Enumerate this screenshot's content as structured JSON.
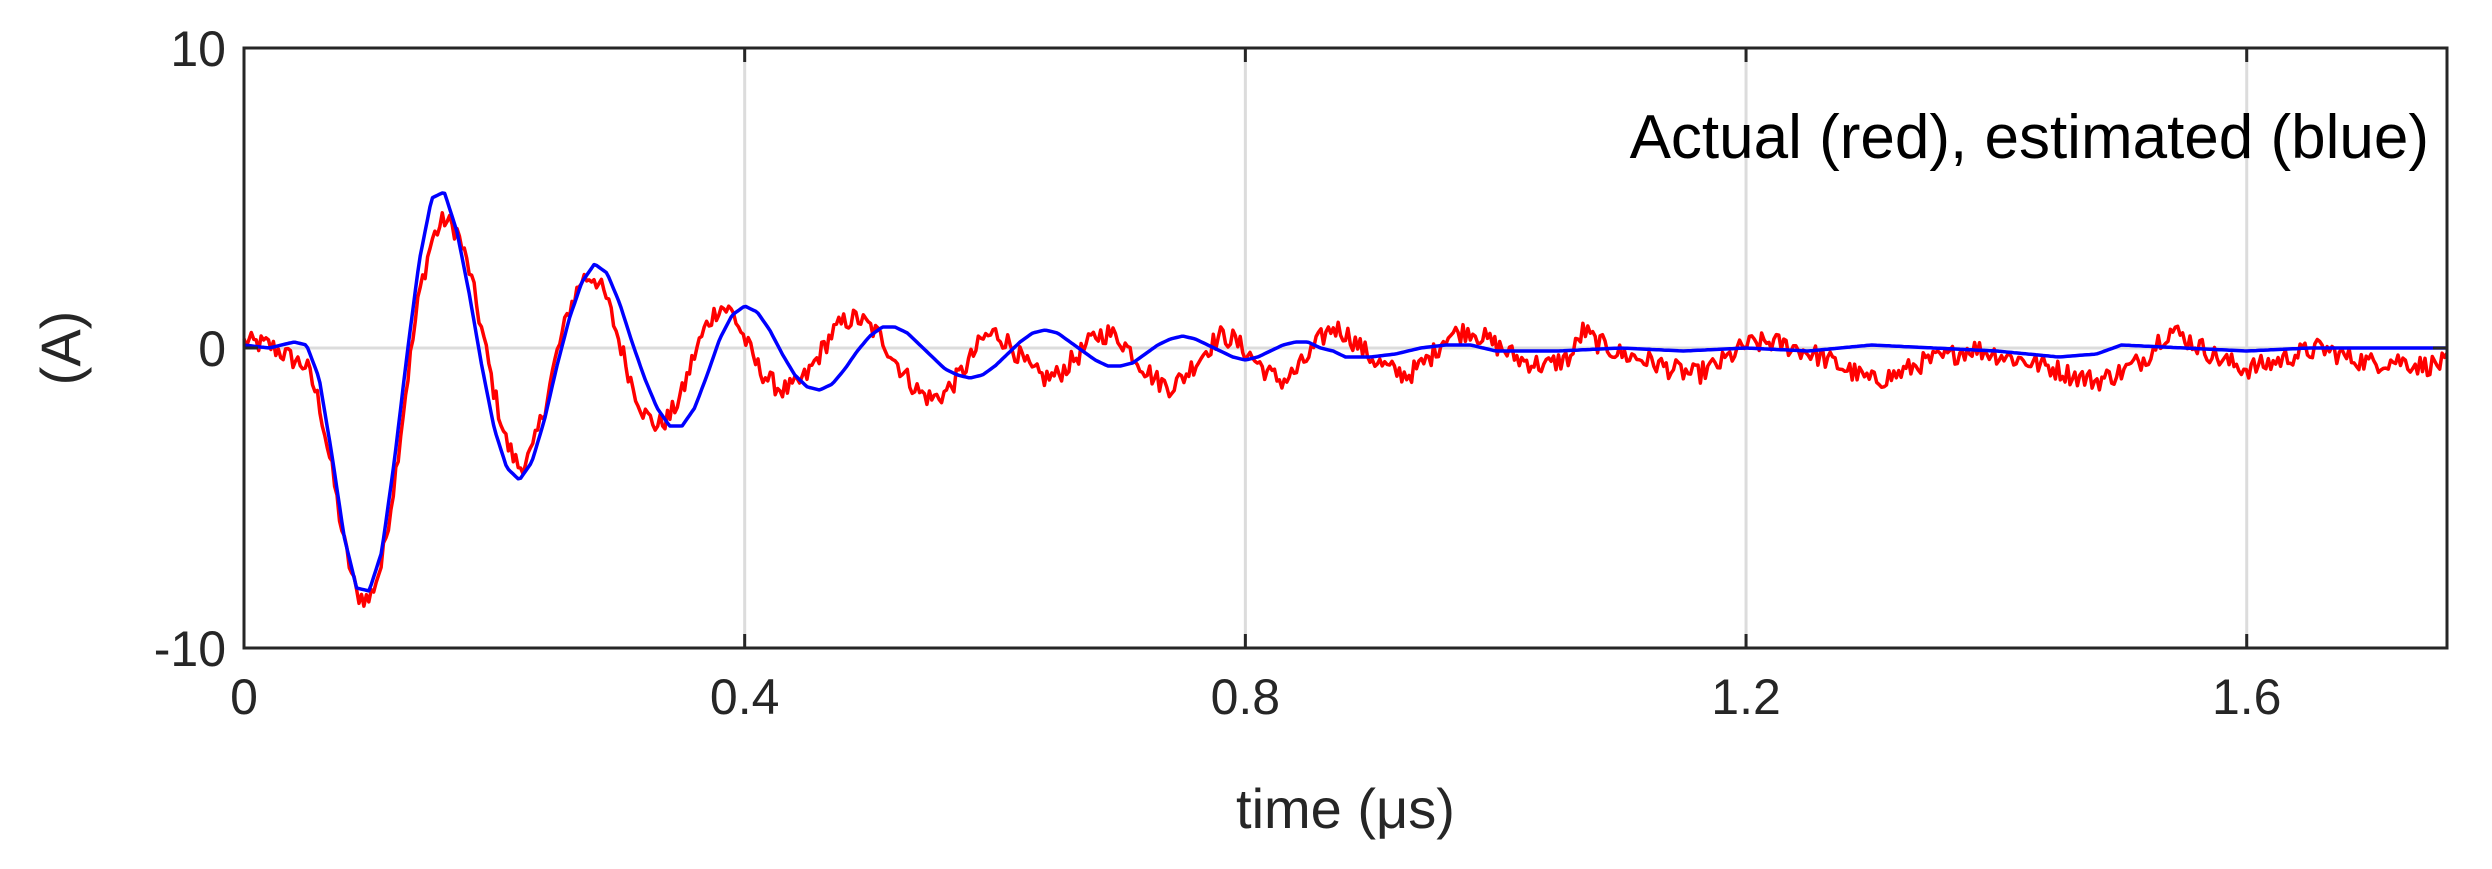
{
  "chart_data": {
    "type": "line",
    "xlabel": "time (μs)",
    "ylabel": "(A)",
    "annotation": "Actual (red), estimated (blue)",
    "xlim": [
      0,
      1.76
    ],
    "ylim": [
      -10,
      10
    ],
    "x_ticks": [
      "0",
      "0.4",
      "0.8",
      "1.2",
      "1.6"
    ],
    "x_tick_values": [
      0,
      0.4,
      0.8,
      1.2,
      1.6
    ],
    "y_ticks": [
      "10",
      "0",
      "-10"
    ],
    "y_tick_values": [
      10,
      0,
      -10
    ],
    "grid": true,
    "series": [
      {
        "color": "#ff0000",
        "x": [
          0,
          0.02,
          0.04,
          0.05,
          0.06,
          0.07,
          0.08,
          0.09,
          0.1,
          0.11,
          0.12,
          0.13,
          0.14,
          0.15,
          0.16,
          0.17,
          0.18,
          0.19,
          0.2,
          0.21,
          0.22,
          0.23,
          0.24,
          0.25,
          0.26,
          0.27,
          0.28,
          0.29,
          0.3,
          0.31,
          0.32,
          0.33,
          0.34,
          0.35,
          0.36,
          0.37,
          0.38,
          0.39,
          0.4,
          0.41,
          0.42,
          0.43,
          0.44,
          0.45,
          0.46,
          0.47,
          0.48,
          0.49,
          0.5,
          0.51,
          0.52,
          0.53,
          0.54,
          0.55,
          0.56,
          0.57,
          0.58,
          0.59,
          0.6,
          0.61,
          0.62,
          0.63,
          0.64,
          0.65,
          0.66,
          0.67,
          0.68,
          0.69,
          0.7,
          0.71,
          0.72,
          0.73,
          0.74,
          0.75,
          0.76,
          0.77,
          0.78,
          0.79,
          0.8,
          0.81,
          0.82,
          0.83,
          0.84,
          0.85,
          0.86,
          0.87,
          0.88,
          0.89,
          0.9,
          0.91,
          0.92,
          0.93,
          0.94,
          0.95,
          0.96,
          0.98,
          1.0,
          1.02,
          1.04,
          1.06,
          1.07,
          1.08,
          1.1,
          1.12,
          1.14,
          1.16,
          1.18,
          1.2,
          1.22,
          1.24,
          1.26,
          1.28,
          1.3,
          1.32,
          1.34,
          1.36,
          1.38,
          1.4,
          1.42,
          1.44,
          1.46,
          1.48,
          1.5,
          1.52,
          1.53,
          1.54,
          1.56,
          1.58,
          1.6,
          1.62,
          1.64,
          1.66,
          1.68,
          1.7,
          1.72,
          1.74,
          1.76
        ],
        "y": [
          0.2,
          0.1,
          -0.4,
          -0.6,
          -1.8,
          -4.0,
          -6.5,
          -8.2,
          -8.4,
          -7.2,
          -4.5,
          -1.2,
          1.8,
          3.6,
          4.3,
          3.9,
          2.6,
          0.6,
          -1.5,
          -3.2,
          -4.0,
          -3.5,
          -2.0,
          -0.2,
          1.3,
          2.3,
          2.4,
          1.6,
          0.2,
          -1.2,
          -2.2,
          -2.6,
          -2.3,
          -1.5,
          -0.2,
          0.8,
          1.4,
          1.2,
          0.3,
          -0.6,
          -1.1,
          -1.4,
          -1.3,
          -0.9,
          -0.2,
          0.5,
          0.9,
          1.0,
          0.7,
          0.3,
          -0.4,
          -1.0,
          -1.5,
          -1.7,
          -1.5,
          -1.0,
          -0.4,
          0.3,
          0.5,
          0.2,
          -0.3,
          -0.8,
          -1.0,
          -0.9,
          -0.5,
          -0.1,
          0.4,
          0.5,
          0.3,
          -0.2,
          -0.7,
          -1.1,
          -1.3,
          -1.0,
          -0.5,
          0.0,
          0.4,
          0.3,
          -0.1,
          -0.5,
          -0.9,
          -1.1,
          -0.8,
          -0.3,
          0.3,
          0.7,
          0.5,
          0.1,
          -0.3,
          -0.6,
          -0.8,
          -0.9,
          -0.6,
          -0.2,
          0.4,
          0.6,
          0.1,
          -0.4,
          -0.6,
          -0.3,
          0.6,
          0.2,
          -0.2,
          -0.4,
          -0.7,
          -0.9,
          -0.5,
          0.1,
          0.2,
          0.0,
          -0.3,
          -0.7,
          -1.1,
          -0.9,
          -0.5,
          -0.3,
          0.0,
          -0.2,
          -0.4,
          -0.6,
          -0.9,
          -1.1,
          -0.8,
          -0.3,
          0.3,
          0.6,
          0.1,
          -0.4,
          -0.7,
          -0.5,
          -0.2,
          0.0,
          -0.3,
          -0.5,
          -0.4,
          -0.6,
          -0.5
        ],
        "noise_amplitude": 0.35
      },
      {
        "color": "#0000ff",
        "x": [
          0,
          0.02,
          0.04,
          0.05,
          0.06,
          0.07,
          0.08,
          0.09,
          0.1,
          0.11,
          0.12,
          0.13,
          0.14,
          0.15,
          0.16,
          0.17,
          0.18,
          0.19,
          0.2,
          0.21,
          0.22,
          0.23,
          0.24,
          0.25,
          0.26,
          0.27,
          0.28,
          0.29,
          0.3,
          0.31,
          0.32,
          0.33,
          0.34,
          0.35,
          0.36,
          0.37,
          0.38,
          0.39,
          0.4,
          0.41,
          0.42,
          0.43,
          0.44,
          0.45,
          0.46,
          0.47,
          0.48,
          0.49,
          0.5,
          0.51,
          0.52,
          0.53,
          0.54,
          0.55,
          0.56,
          0.57,
          0.58,
          0.59,
          0.6,
          0.61,
          0.62,
          0.63,
          0.64,
          0.65,
          0.66,
          0.67,
          0.68,
          0.69,
          0.7,
          0.71,
          0.72,
          0.73,
          0.74,
          0.75,
          0.76,
          0.77,
          0.78,
          0.79,
          0.8,
          0.81,
          0.82,
          0.83,
          0.84,
          0.85,
          0.86,
          0.87,
          0.88,
          0.9,
          0.92,
          0.94,
          0.96,
          0.98,
          1.0,
          1.05,
          1.1,
          1.15,
          1.2,
          1.25,
          1.3,
          1.35,
          1.4,
          1.45,
          1.48,
          1.5,
          1.55,
          1.6,
          1.65,
          1.7,
          1.76
        ],
        "y": [
          0.1,
          0.0,
          0.2,
          0.1,
          -1.0,
          -3.5,
          -6.3,
          -8.0,
          -8.1,
          -6.8,
          -3.8,
          -0.3,
          2.9,
          5.0,
          5.2,
          3.9,
          1.8,
          -0.6,
          -2.7,
          -4.0,
          -4.4,
          -3.8,
          -2.4,
          -0.6,
          1.0,
          2.2,
          2.8,
          2.5,
          1.5,
          0.2,
          -1.0,
          -2.0,
          -2.6,
          -2.6,
          -2.0,
          -0.9,
          0.3,
          1.1,
          1.4,
          1.2,
          0.6,
          -0.2,
          -0.9,
          -1.3,
          -1.4,
          -1.2,
          -0.7,
          -0.1,
          0.4,
          0.7,
          0.7,
          0.5,
          0.1,
          -0.3,
          -0.7,
          -0.9,
          -1.0,
          -0.9,
          -0.6,
          -0.2,
          0.2,
          0.5,
          0.6,
          0.5,
          0.2,
          -0.1,
          -0.4,
          -0.6,
          -0.6,
          -0.5,
          -0.2,
          0.1,
          0.3,
          0.4,
          0.3,
          0.1,
          -0.1,
          -0.3,
          -0.4,
          -0.3,
          -0.1,
          0.1,
          0.2,
          0.2,
          0.0,
          -0.1,
          -0.3,
          -0.3,
          -0.2,
          0.0,
          0.1,
          0.1,
          -0.1,
          -0.1,
          0.0,
          -0.1,
          0.0,
          -0.1,
          0.1,
          0.0,
          -0.1,
          -0.3,
          -0.2,
          0.1,
          0.0,
          -0.1,
          0.0,
          0.0,
          0.0
        ]
      }
    ]
  }
}
